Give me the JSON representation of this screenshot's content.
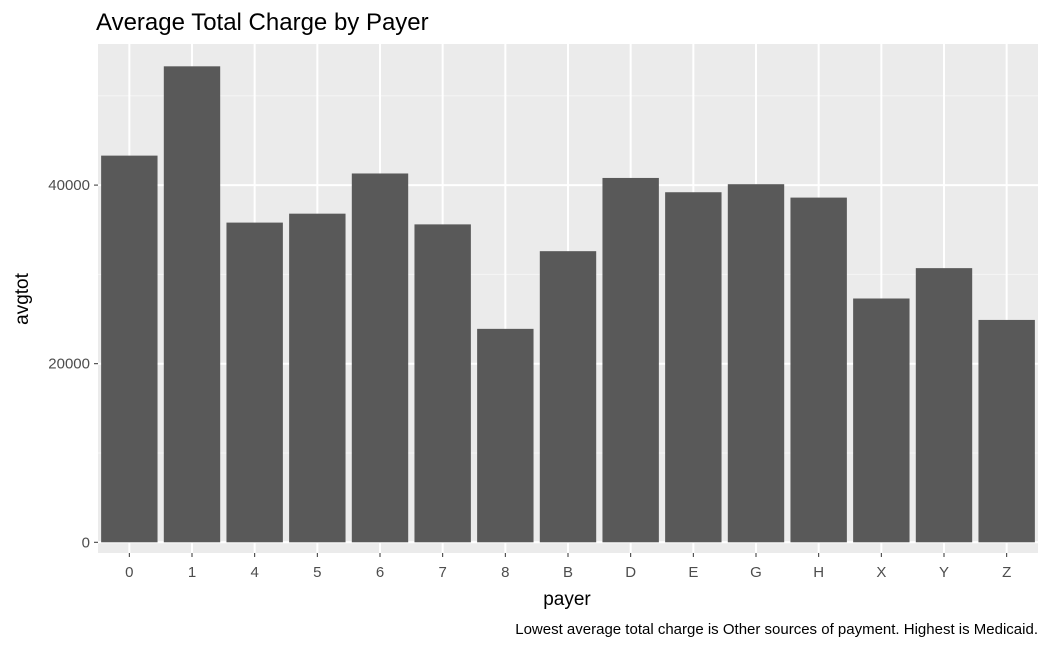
{
  "chart_data": {
    "type": "bar",
    "title": "Average Total Charge by Payer",
    "xlabel": "payer",
    "ylabel": "avgtot",
    "caption": "Lowest average total charge is Other sources of payment. Highest is Medicaid.",
    "categories": [
      "0",
      "1",
      "4",
      "5",
      "6",
      "7",
      "8",
      "B",
      "D",
      "E",
      "G",
      "H",
      "X",
      "Y",
      "Z"
    ],
    "values": [
      43300,
      53300,
      35800,
      36800,
      41300,
      35600,
      23900,
      32600,
      40800,
      39200,
      40100,
      38600,
      27300,
      30700,
      24900
    ],
    "yticks": [
      0,
      20000,
      40000
    ],
    "ylim": [
      -1200,
      55800
    ],
    "grid": true,
    "legend": "none",
    "colors": {
      "bar": "#595959",
      "panel": "#ebebeb",
      "grid_major": "#ffffff",
      "grid_minor": "#f5f5f5",
      "tick": "#333333"
    }
  }
}
